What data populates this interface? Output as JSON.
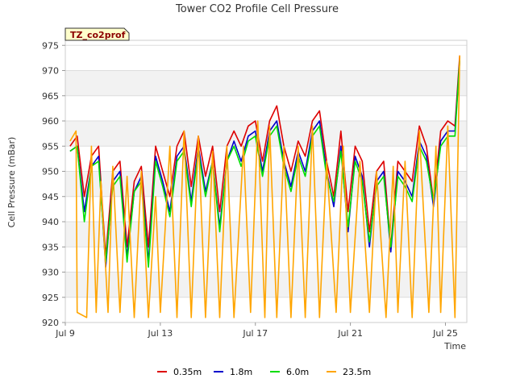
{
  "chart_data": {
    "type": "line",
    "title": "Tower CO2 Profile Cell Pressure",
    "xlabel": "Time",
    "ylabel": "Cell Pressure (mBar)",
    "site_label": "TZ_co2prof",
    "x_ticks": [
      "Jul 9",
      "Jul 13",
      "Jul 17",
      "Jul 21",
      "Jul 25"
    ],
    "x_tick_days": [
      9,
      13,
      17,
      21,
      25
    ],
    "xlim_days": [
      9,
      25.9
    ],
    "y_ticks": [
      920,
      925,
      930,
      935,
      940,
      945,
      950,
      955,
      960,
      965,
      970,
      975
    ],
    "ylim": [
      920,
      976
    ],
    "grid": true,
    "legend_position": "bottom-center",
    "series": [
      {
        "name": "0.35m",
        "color": "#dd0000",
        "x": [
          9.2,
          9.5,
          9.8,
          10.1,
          10.4,
          10.7,
          11.0,
          11.3,
          11.6,
          11.9,
          12.2,
          12.5,
          12.8,
          13.1,
          13.4,
          13.7,
          14.0,
          14.3,
          14.6,
          14.9,
          15.2,
          15.5,
          15.8,
          16.1,
          16.4,
          16.7,
          17.0,
          17.3,
          17.6,
          17.9,
          18.2,
          18.5,
          18.8,
          19.1,
          19.4,
          19.7,
          20.0,
          20.3,
          20.6,
          20.9,
          21.2,
          21.5,
          21.8,
          22.1,
          22.4,
          22.7,
          23.0,
          23.3,
          23.6,
          23.9,
          24.2,
          24.5,
          24.8,
          25.1,
          25.4,
          25.6
        ],
        "y": [
          955,
          957,
          945,
          953,
          955,
          933,
          950,
          952,
          935,
          948,
          951,
          935,
          955,
          950,
          945,
          955,
          958,
          947,
          957,
          949,
          955,
          942,
          955,
          958,
          955,
          959,
          960,
          952,
          960,
          963,
          955,
          950,
          956,
          953,
          960,
          962,
          952,
          945,
          958,
          942,
          955,
          952,
          938,
          950,
          952,
          935,
          952,
          950,
          948,
          959,
          955,
          944,
          958,
          960,
          959,
          973
        ]
      },
      {
        "name": "1.8m",
        "color": "#0000cc",
        "x": [
          9.2,
          9.5,
          9.8,
          10.1,
          10.4,
          10.7,
          11.0,
          11.3,
          11.6,
          11.9,
          12.2,
          12.5,
          12.8,
          13.1,
          13.4,
          13.7,
          14.0,
          14.3,
          14.6,
          14.9,
          15.2,
          15.5,
          15.8,
          16.1,
          16.4,
          16.7,
          17.0,
          17.3,
          17.6,
          17.9,
          18.2,
          18.5,
          18.8,
          19.1,
          19.4,
          19.7,
          20.0,
          20.3,
          20.6,
          20.9,
          21.2,
          21.5,
          21.8,
          22.1,
          22.4,
          22.7,
          23.0,
          23.3,
          23.6,
          23.9,
          24.2,
          24.5,
          24.8,
          25.1,
          25.4,
          25.6
        ],
        "y": [
          954,
          955,
          942,
          951,
          953,
          931,
          948,
          950,
          933,
          946,
          949,
          932,
          953,
          948,
          942,
          953,
          955,
          944,
          955,
          946,
          952,
          939,
          952,
          956,
          952,
          957,
          958,
          950,
          958,
          960,
          952,
          947,
          954,
          950,
          958,
          960,
          950,
          943,
          955,
          938,
          953,
          949,
          935,
          948,
          950,
          934,
          950,
          948,
          945,
          956,
          953,
          943,
          956,
          958,
          958,
          972
        ]
      },
      {
        "name": "6.0m",
        "color": "#00dd00",
        "x": [
          9.2,
          9.5,
          9.8,
          10.1,
          10.4,
          10.7,
          11.0,
          11.3,
          11.6,
          11.9,
          12.2,
          12.5,
          12.8,
          13.1,
          13.4,
          13.7,
          14.0,
          14.3,
          14.6,
          14.9,
          15.2,
          15.5,
          15.8,
          16.1,
          16.4,
          16.7,
          17.0,
          17.3,
          17.6,
          17.9,
          18.2,
          18.5,
          18.8,
          19.1,
          19.4,
          19.7,
          20.0,
          20.3,
          20.6,
          20.9,
          21.2,
          21.5,
          21.8,
          22.1,
          22.4,
          22.7,
          23.0,
          23.3,
          23.6,
          23.9,
          24.2,
          24.5,
          24.8,
          25.1,
          25.4,
          25.6
        ],
        "y": [
          954,
          955,
          940,
          951,
          952,
          932,
          947,
          949,
          932,
          946,
          948,
          931,
          952,
          947,
          941,
          952,
          954,
          943,
          954,
          945,
          952,
          938,
          952,
          955,
          951,
          956,
          957,
          949,
          957,
          959,
          951,
          946,
          953,
          949,
          957,
          959,
          949,
          944,
          954,
          939,
          952,
          948,
          936,
          947,
          949,
          935,
          949,
          947,
          944,
          955,
          952,
          944,
          955,
          957,
          957,
          972
        ]
      },
      {
        "name": "23.5m",
        "color": "#ffa500",
        "x": [
          9.2,
          9.45,
          9.5,
          9.9,
          10.1,
          10.3,
          10.5,
          10.8,
          11.0,
          11.3,
          11.6,
          11.9,
          12.2,
          12.5,
          12.8,
          13.0,
          13.4,
          13.7,
          14.0,
          14.3,
          14.6,
          14.9,
          15.2,
          15.5,
          15.8,
          16.1,
          16.5,
          16.8,
          17.1,
          17.4,
          17.6,
          17.9,
          18.2,
          18.5,
          18.8,
          19.1,
          19.4,
          19.7,
          20.0,
          20.4,
          20.7,
          21.0,
          21.4,
          21.8,
          22.1,
          22.5,
          22.8,
          23.0,
          23.3,
          23.6,
          23.9,
          24.3,
          24.6,
          24.8,
          25.1,
          25.4,
          25.6
        ],
        "y": [
          956,
          958,
          922,
          921,
          955,
          922,
          948,
          922,
          951,
          922,
          949,
          921,
          950,
          921,
          945,
          922,
          955,
          921,
          958,
          921,
          957,
          921,
          954,
          921,
          955,
          921,
          955,
          922,
          960,
          921,
          959,
          921,
          955,
          921,
          955,
          921,
          959,
          921,
          952,
          922,
          955,
          922,
          952,
          922,
          950,
          921,
          951,
          922,
          952,
          921,
          958,
          922,
          955,
          922,
          959,
          921,
          973
        ]
      }
    ]
  }
}
